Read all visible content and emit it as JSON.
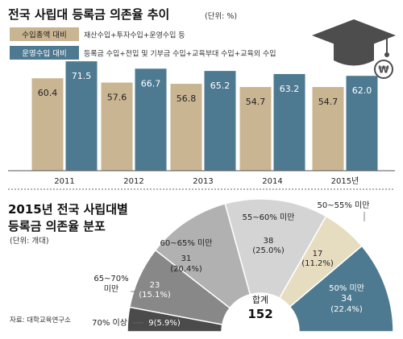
{
  "chart_data": [
    {
      "type": "bar",
      "title": "전국 사립대 등록금 의존율 추이",
      "unit": "(단위: %)",
      "categories": [
        "2011",
        "2012",
        "2013",
        "2014",
        "2015년"
      ],
      "series": [
        {
          "name": "수입총액 대비",
          "desc": "재산수입+투자수입+운영수입 등",
          "color": "#c9b592",
          "values": [
            60.4,
            57.6,
            56.8,
            54.7,
            54.7
          ]
        },
        {
          "name": "운영수입 대비",
          "desc": "등록금 수입+전입 및 기부금 수입+교육부대 수입+교육외 수입",
          "color": "#4e7a91",
          "values": [
            71.5,
            66.7,
            65.2,
            63.2,
            62.0
          ]
        }
      ],
      "value_labels": [
        [
          "60.4",
          "57.6",
          "56.8",
          "54.7",
          "54.7"
        ],
        [
          "71.5",
          "66.7",
          "65.2",
          "63.2",
          "62.0"
        ]
      ],
      "ylim": [
        0,
        80
      ],
      "icon": "graduation-cap-won-icon"
    },
    {
      "type": "pie",
      "title_lines": [
        "2015년 전국 사립대별",
        "등록금 의존율 분포"
      ],
      "unit": "(단위: 개대)",
      "total_label": "합계",
      "total": "152",
      "slices": [
        {
          "label": "50% 미만",
          "count": "34",
          "pct": "(22.4%)",
          "value": 34,
          "color": "#4e7a91"
        },
        {
          "label": "50~55% 미만",
          "count": "17",
          "pct": "(11.2%)",
          "value": 17,
          "color": "#e6dcc0"
        },
        {
          "label": "55~60% 미만",
          "count": "38",
          "pct": "(25.0%)",
          "value": 38,
          "color": "#d4d4d4"
        },
        {
          "label": "60~65% 미만",
          "count": "31",
          "pct": "(20.4%)",
          "value": 31,
          "color": "#b1b1b1"
        },
        {
          "label": "65~70%",
          "label2": "미만",
          "count": "23",
          "pct": "(15.1%)",
          "value": 23,
          "color": "#888888"
        },
        {
          "label": "70% 이상",
          "count": "9",
          "pct": "(5.9%)",
          "value": 9,
          "color": "#4b4b4b"
        }
      ]
    }
  ],
  "source": "자료: 대학교육연구소"
}
